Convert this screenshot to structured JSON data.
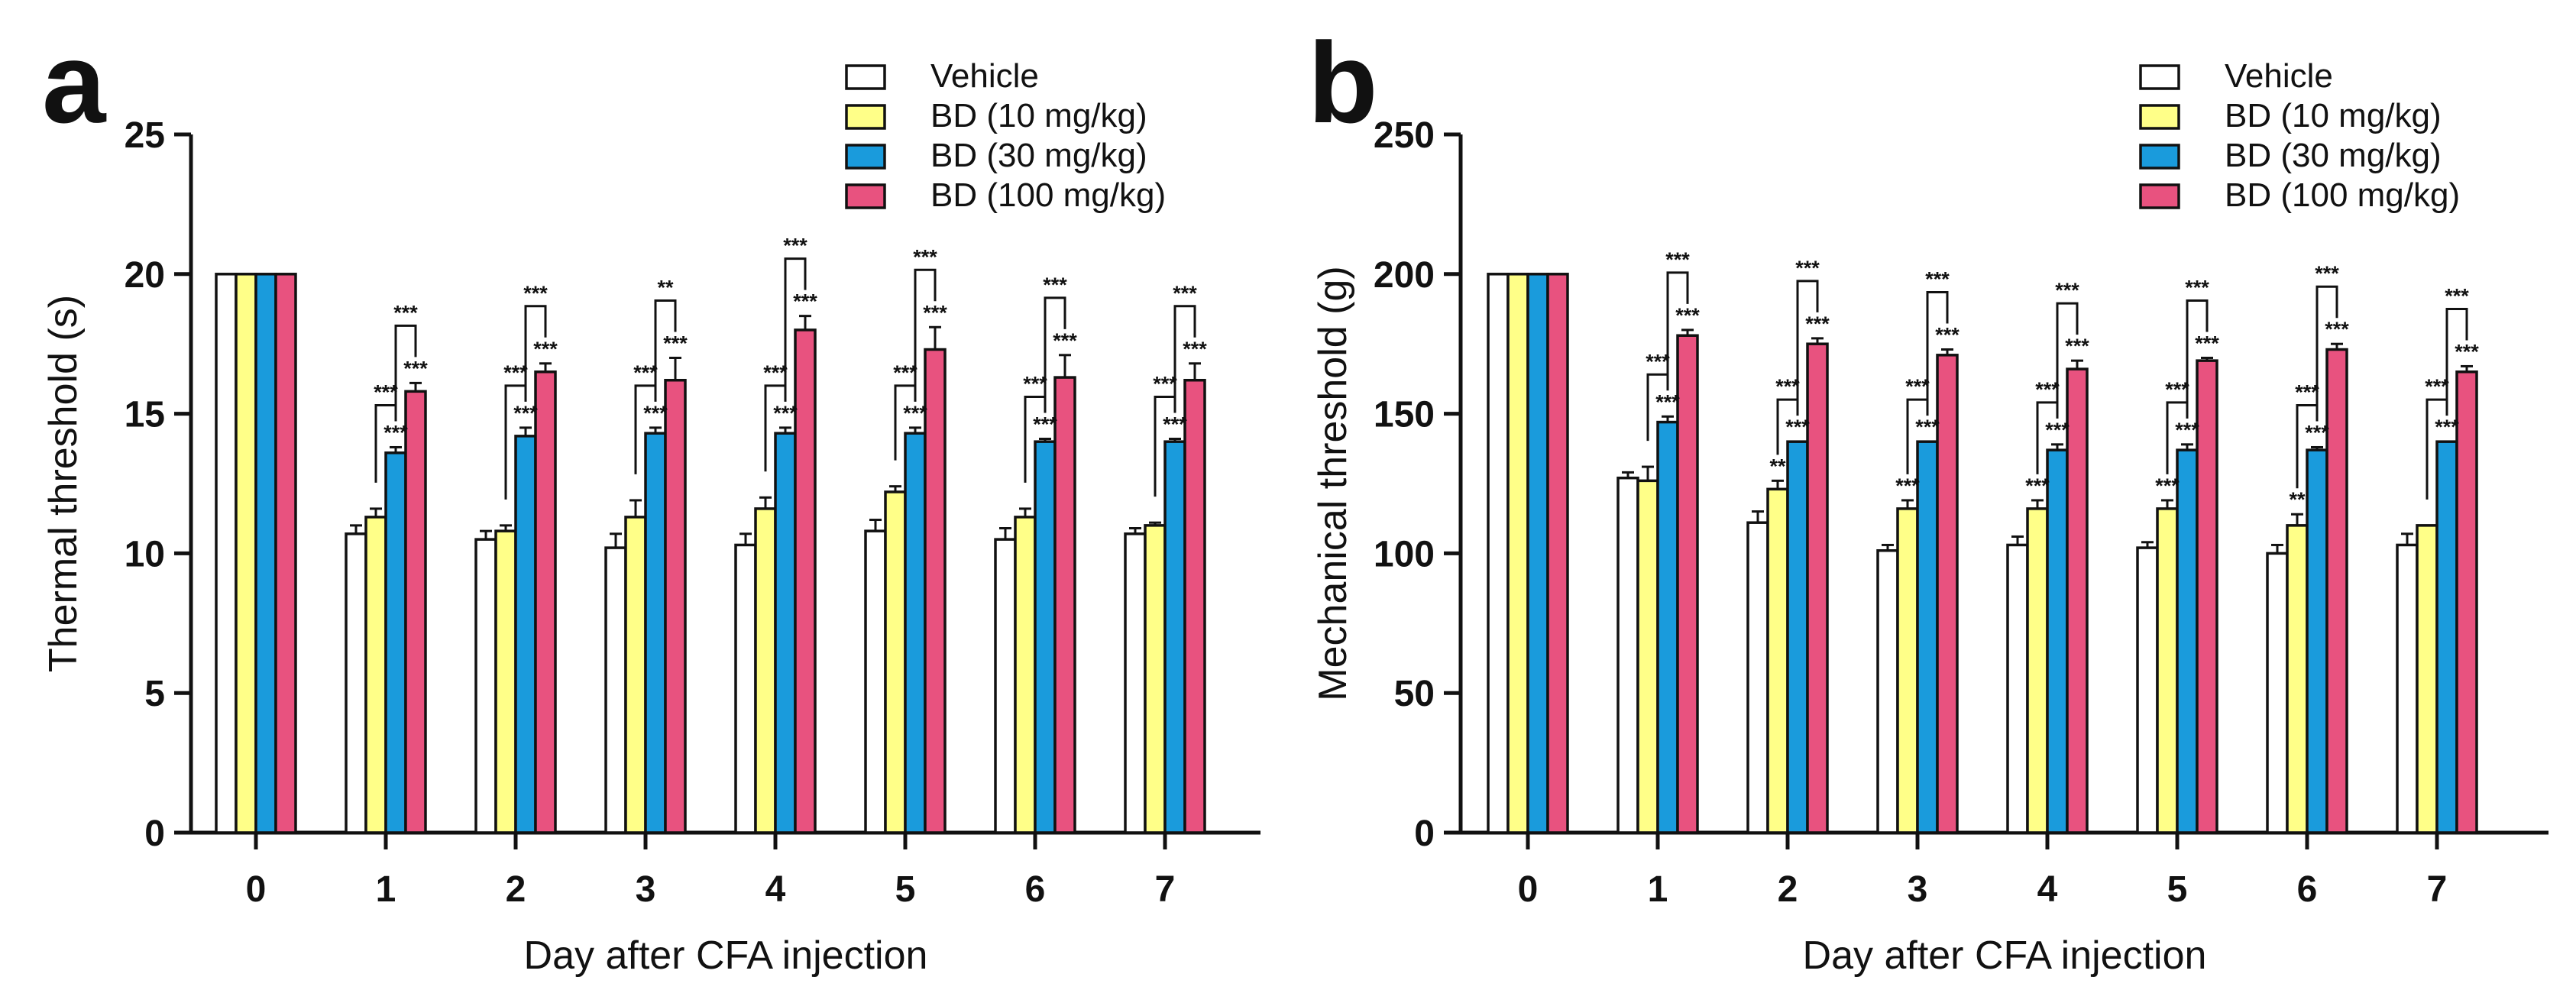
{
  "chart_data": [
    {
      "type": "bar",
      "panel_label": "a",
      "title": "",
      "xlabel": "Day after CFA injection",
      "ylabel": "Thermal threshold (s)",
      "ylim": [
        0,
        25
      ],
      "yticks": [
        "0",
        "5",
        "10",
        "15",
        "20",
        "25"
      ],
      "categories": [
        "0",
        "1",
        "2",
        "3",
        "4",
        "5",
        "6",
        "7"
      ],
      "legend_position": "top-right",
      "series": [
        {
          "name": "Vehicle",
          "color": "#ffffff",
          "values": [
            20,
            10.7,
            10.5,
            10.2,
            10.3,
            10.8,
            10.5,
            10.7
          ],
          "errors": [
            0,
            0.3,
            0.3,
            0.5,
            0.4,
            0.4,
            0.4,
            0.2
          ]
        },
        {
          "name": "BD (10 mg/kg)",
          "color": "#ffff88",
          "values": [
            20,
            11.3,
            10.8,
            11.3,
            11.6,
            12.2,
            11.3,
            11.0
          ],
          "errors": [
            0,
            0.3,
            0.2,
            0.6,
            0.4,
            0.2,
            0.3,
            0.1
          ]
        },
        {
          "name": "BD (30 mg/kg)",
          "color": "#1a9bdc",
          "values": [
            20,
            13.6,
            14.2,
            14.3,
            14.3,
            14.3,
            14.0,
            14.0
          ],
          "errors": [
            0,
            0.2,
            0.3,
            0.2,
            0.2,
            0.2,
            0.1,
            0.1
          ]
        },
        {
          "name": "BD (100 mg/kg)",
          "color": "#e8527f",
          "values": [
            20,
            15.8,
            16.5,
            16.2,
            18.0,
            17.3,
            16.3,
            16.2
          ],
          "errors": [
            0,
            0.3,
            0.3,
            0.8,
            0.5,
            0.8,
            0.8,
            0.6
          ]
        }
      ],
      "annotations": [
        {
          "day": "1",
          "single": [
            {
              "series": 2,
              "text": "***"
            },
            {
              "series": 3,
              "text": "***"
            }
          ],
          "brackets": [
            {
              "from": 1,
              "to": 2,
              "text": "***"
            },
            {
              "from": 2,
              "to": 3,
              "text": "***"
            }
          ]
        },
        {
          "day": "2",
          "single": [
            {
              "series": 2,
              "text": "***"
            },
            {
              "series": 3,
              "text": "***"
            }
          ],
          "brackets": [
            {
              "from": 1,
              "to": 2,
              "text": "***"
            },
            {
              "from": 2,
              "to": 3,
              "text": "***"
            }
          ]
        },
        {
          "day": "3",
          "single": [
            {
              "series": 2,
              "text": "***"
            },
            {
              "series": 3,
              "text": "***"
            }
          ],
          "brackets": [
            {
              "from": 1,
              "to": 2,
              "text": "***"
            },
            {
              "from": 2,
              "to": 3,
              "text": "**"
            }
          ]
        },
        {
          "day": "4",
          "single": [
            {
              "series": 2,
              "text": "***"
            },
            {
              "series": 3,
              "text": "***"
            }
          ],
          "brackets": [
            {
              "from": 1,
              "to": 2,
              "text": "***"
            },
            {
              "from": 2,
              "to": 3,
              "text": "***"
            }
          ]
        },
        {
          "day": "5",
          "single": [
            {
              "series": 2,
              "text": "***"
            },
            {
              "series": 3,
              "text": "***"
            }
          ],
          "brackets": [
            {
              "from": 1,
              "to": 2,
              "text": "***"
            },
            {
              "from": 2,
              "to": 3,
              "text": "***"
            }
          ]
        },
        {
          "day": "6",
          "single": [
            {
              "series": 2,
              "text": "***"
            },
            {
              "series": 3,
              "text": "***"
            }
          ],
          "brackets": [
            {
              "from": 1,
              "to": 2,
              "text": "***"
            },
            {
              "from": 2,
              "to": 3,
              "text": "***"
            }
          ]
        },
        {
          "day": "7",
          "single": [
            {
              "series": 2,
              "text": "***"
            },
            {
              "series": 3,
              "text": "***"
            }
          ],
          "brackets": [
            {
              "from": 1,
              "to": 2,
              "text": "***"
            },
            {
              "from": 2,
              "to": 3,
              "text": "***"
            }
          ]
        }
      ]
    },
    {
      "type": "bar",
      "panel_label": "b",
      "title": "",
      "xlabel": "Day after CFA injection",
      "ylabel": "Mechanical threshold (g)",
      "ylim": [
        0,
        250
      ],
      "yticks": [
        "0",
        "50",
        "100",
        "150",
        "200",
        "250"
      ],
      "categories": [
        "0",
        "1",
        "2",
        "3",
        "4",
        "5",
        "6",
        "7"
      ],
      "legend_position": "top-right",
      "series": [
        {
          "name": "Vehicle",
          "color": "#ffffff",
          "values": [
            200,
            127,
            111,
            101,
            103,
            102,
            100,
            103
          ],
          "errors": [
            0,
            2,
            4,
            2,
            3,
            2,
            3,
            4
          ]
        },
        {
          "name": "BD (10 mg/kg)",
          "color": "#ffff88",
          "values": [
            200,
            126,
            123,
            116,
            116,
            116,
            110,
            110
          ],
          "errors": [
            0,
            5,
            3,
            3,
            3,
            3,
            4,
            0
          ]
        },
        {
          "name": "BD (30 mg/kg)",
          "color": "#1a9bdc",
          "values": [
            200,
            147,
            140,
            140,
            137,
            137,
            137,
            140
          ],
          "errors": [
            0,
            2,
            0,
            0,
            2,
            2,
            1,
            0
          ]
        },
        {
          "name": "BD (100 mg/kg)",
          "color": "#e8527f",
          "values": [
            200,
            178,
            175,
            171,
            166,
            169,
            173,
            165
          ],
          "errors": [
            0,
            2,
            2,
            2,
            3,
            1,
            2,
            2
          ]
        }
      ],
      "annotations": [
        {
          "day": "1",
          "single": [
            {
              "series": 2,
              "text": "***"
            },
            {
              "series": 3,
              "text": "***"
            }
          ],
          "brackets": [
            {
              "from": 1,
              "to": 2,
              "text": "***"
            },
            {
              "from": 2,
              "to": 3,
              "text": "***"
            }
          ]
        },
        {
          "day": "2",
          "single": [
            {
              "series": 1,
              "text": "**"
            },
            {
              "series": 2,
              "text": "***"
            },
            {
              "series": 3,
              "text": "***"
            }
          ],
          "brackets": [
            {
              "from": 1,
              "to": 2,
              "text": "***"
            },
            {
              "from": 2,
              "to": 3,
              "text": "***"
            }
          ]
        },
        {
          "day": "3",
          "single": [
            {
              "series": 1,
              "text": "***"
            },
            {
              "series": 2,
              "text": "***"
            },
            {
              "series": 3,
              "text": "***"
            }
          ],
          "brackets": [
            {
              "from": 1,
              "to": 2,
              "text": "***"
            },
            {
              "from": 2,
              "to": 3,
              "text": "***"
            }
          ]
        },
        {
          "day": "4",
          "single": [
            {
              "series": 1,
              "text": "***"
            },
            {
              "series": 2,
              "text": "***"
            },
            {
              "series": 3,
              "text": "***"
            }
          ],
          "brackets": [
            {
              "from": 1,
              "to": 2,
              "text": "***"
            },
            {
              "from": 2,
              "to": 3,
              "text": "***"
            }
          ]
        },
        {
          "day": "5",
          "single": [
            {
              "series": 1,
              "text": "***"
            },
            {
              "series": 2,
              "text": "***"
            },
            {
              "series": 3,
              "text": "***"
            }
          ],
          "brackets": [
            {
              "from": 1,
              "to": 2,
              "text": "***"
            },
            {
              "from": 2,
              "to": 3,
              "text": "***"
            }
          ]
        },
        {
          "day": "6",
          "single": [
            {
              "series": 1,
              "text": "**"
            },
            {
              "series": 2,
              "text": "***"
            },
            {
              "series": 3,
              "text": "***"
            }
          ],
          "brackets": [
            {
              "from": 1,
              "to": 2,
              "text": "***"
            },
            {
              "from": 2,
              "to": 3,
              "text": "***"
            }
          ]
        },
        {
          "day": "7",
          "single": [
            {
              "series": 2,
              "text": "***"
            },
            {
              "series": 3,
              "text": "***"
            }
          ],
          "brackets": [
            {
              "from": 1,
              "to": 2,
              "text": "***"
            },
            {
              "from": 2,
              "to": 3,
              "text": "***"
            }
          ]
        }
      ]
    }
  ]
}
